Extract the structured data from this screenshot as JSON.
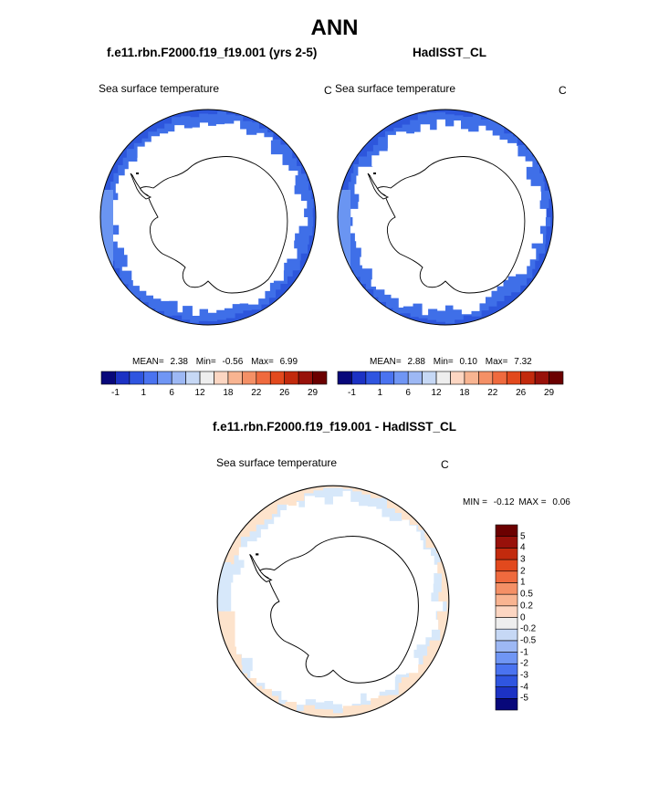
{
  "main_title": "ANN",
  "panels": {
    "left": {
      "case_title": "f.e11.rbn.F2000.f19_f19.001 (yrs 2-5)",
      "variable": "Sea surface temperature",
      "units": "C",
      "stats": {
        "mean_label": "MEAN=",
        "mean": "2.38",
        "min_label": "Min=",
        "min": "-0.56",
        "max_label": "Max=",
        "max": "6.99"
      }
    },
    "right": {
      "case_title": "HadISST_CL",
      "variable": "Sea surface temperature",
      "units": "C",
      "stats": {
        "mean_label": "MEAN=",
        "mean": "2.88",
        "min_label": "Min=",
        "min": "0.10",
        "max_label": "Max=",
        "max": "7.32"
      }
    },
    "diff": {
      "case_title": "f.e11.rbn.F2000.f19_f19.001 - HadISST_CL",
      "variable": "Sea surface temperature",
      "units": "C",
      "stats": {
        "min_label": "MIN =",
        "min": "-0.12",
        "max_label": "MAX =",
        "max": "0.06"
      }
    }
  },
  "colorbar_horizontal": {
    "colors": [
      "#08087a",
      "#1c32c4",
      "#2f55e0",
      "#4a73f0",
      "#7096f4",
      "#9db8f4",
      "#c6d8f5",
      "#eeeeee",
      "#fcd6c2",
      "#f8b491",
      "#f49066",
      "#ef6a3e",
      "#e2491d",
      "#c22a0d",
      "#98110a",
      "#6b0000"
    ],
    "labels": [
      "-1",
      "1",
      "6",
      "12",
      "18",
      "22",
      "26",
      "29"
    ]
  },
  "colorbar_vertical": {
    "colors": [
      "#08087a",
      "#1c32c4",
      "#2f55e0",
      "#4a73f0",
      "#7096f4",
      "#9db8f4",
      "#c6d8f5",
      "#eeeeee",
      "#fcd6c2",
      "#f8b491",
      "#f49066",
      "#ef6a3e",
      "#e2491d",
      "#c22a0d",
      "#98110a",
      "#6b0000"
    ],
    "labels": [
      "5",
      "4",
      "3",
      "2",
      "1",
      "0.5",
      "0.2",
      "0",
      "-0.2",
      "-0.5",
      "-1",
      "-2",
      "-3",
      "-4",
      "-5"
    ]
  },
  "map_colors": {
    "ocean_outer": "#3f6fe8",
    "ocean_mid": "#2d56dc",
    "ocean_light": "#6a95f2",
    "diff_light_blue": "#d7e8fa",
    "diff_light_orange": "#fde3cc"
  }
}
